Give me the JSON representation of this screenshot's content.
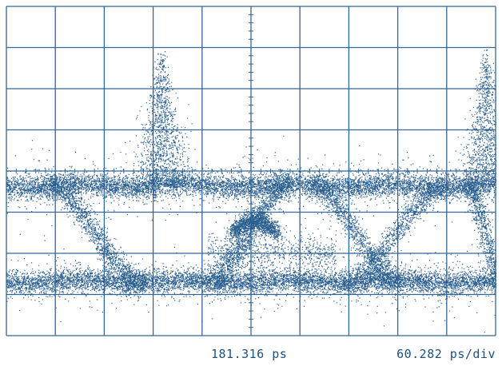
{
  "scope": {
    "readouts": {
      "time_position": "181.316 ps",
      "time_scale": "60.282 ps/div"
    },
    "grid": {
      "divisions_x": 10,
      "divisions_y": 8,
      "minor_ticks_per_division": 5
    },
    "display_mode": "eye-diagram",
    "colors": {
      "background": "#ffffff",
      "grid": "#336699",
      "trace": "#2a5f8f",
      "text": "#1f4f7d"
    }
  }
}
